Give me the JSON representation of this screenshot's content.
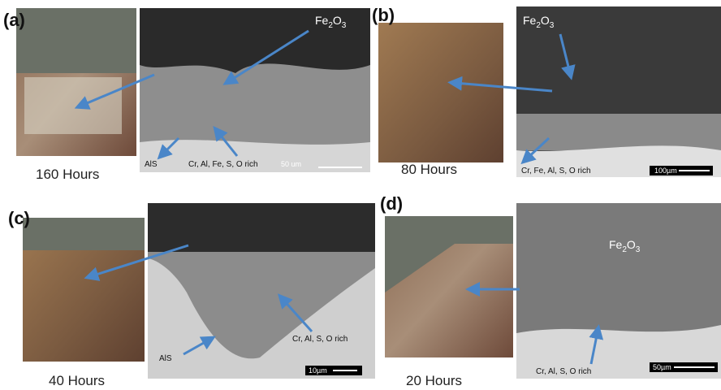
{
  "panels": [
    {
      "label": "(a)",
      "caption": "160 Hours",
      "oxide": [
        "Fe",
        "2",
        "O",
        "3"
      ],
      "phase": "AlS",
      "layer": "Cr, Al, Fe, S, O rich",
      "scale": "50 um"
    },
    {
      "label": "(b)",
      "caption": "80 Hours",
      "oxide": [
        "Fe",
        "2",
        "O",
        "3"
      ],
      "layer": "Cr, Fe, Al, S, O rich",
      "scale": "100µm"
    },
    {
      "label": "(c)",
      "caption": "40 Hours",
      "phase": "AlS",
      "layer": "Cr, Al, S, O rich",
      "scale": "10µm"
    },
    {
      "label": "(d)",
      "caption": "20 Hours",
      "oxide": [
        "Fe",
        "2",
        "O",
        "3"
      ],
      "layer": "Cr, Al, S, O rich",
      "scale": "50µm"
    }
  ]
}
